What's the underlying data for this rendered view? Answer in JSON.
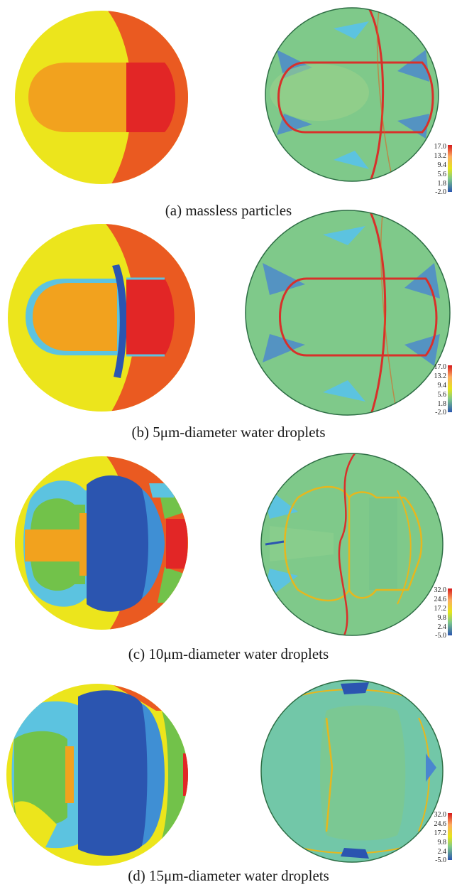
{
  "figure": {
    "panels": [
      {
        "id": "a",
        "caption": "(a) massless particles",
        "colorbar_ticks": [
          "17.0",
          "13.2",
          "9.4",
          "5.6",
          "1.8",
          "-2.0"
        ]
      },
      {
        "id": "b",
        "caption": "(b) 5μm-diameter water droplets",
        "colorbar_ticks": [
          "17.0",
          "13.2",
          "9.4",
          "5.6",
          "1.8",
          "-2.0"
        ]
      },
      {
        "id": "c",
        "caption": "(c) 10μm-diameter water droplets",
        "colorbar_ticks": [
          "32.0",
          "24.6",
          "17.2",
          "9.8",
          "2.4",
          "-5.0"
        ]
      },
      {
        "id": "d",
        "caption": "(d) 15μm-diameter water droplets",
        "colorbar_ticks": [
          "32.0",
          "24.6",
          "17.2",
          "9.8",
          "2.4",
          "-5.0"
        ]
      }
    ],
    "colors": {
      "yellow": "#ece51c",
      "orange_red": "#ea5a21",
      "red": "#e22626",
      "orange": "#f2a21e",
      "green": "#72c24a",
      "light_blue": "#5cc3e0",
      "mid_blue": "#3f8fd4",
      "dark_blue": "#2b55b0",
      "field_green": "#7fc98a",
      "field_blue": "#4a86cf",
      "front_red": "#d8302a"
    }
  }
}
